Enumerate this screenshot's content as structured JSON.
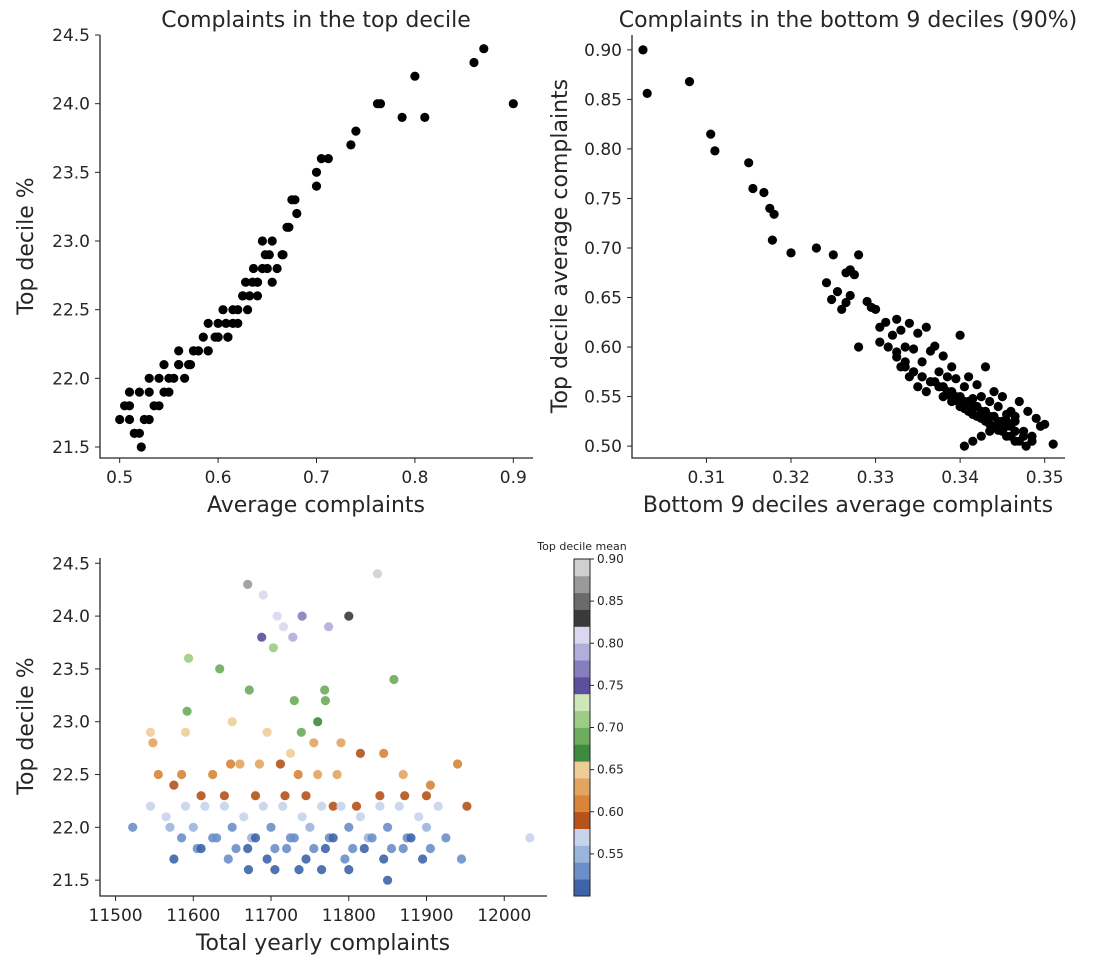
{
  "chart_data": [
    {
      "type": "scatter",
      "title": "Complaints in the top decile",
      "xlabel": "Average complaints",
      "ylabel": "Top decile %",
      "xlim": [
        0.48,
        0.92
      ],
      "ylim": [
        21.42,
        24.5
      ],
      "xticks": [
        "0.5",
        "0.6",
        "0.7",
        "0.8",
        "0.9"
      ],
      "yticks": [
        "21.5",
        "22.0",
        "22.5",
        "23.0",
        "23.5",
        "24.0",
        "24.5"
      ],
      "point_color": "#000000",
      "x": [
        0.9,
        0.87,
        0.86,
        0.81,
        0.8,
        0.787,
        0.765,
        0.762,
        0.74,
        0.735,
        0.712,
        0.705,
        0.7,
        0.7,
        0.68,
        0.678,
        0.675,
        0.672,
        0.67,
        0.666,
        0.655,
        0.652,
        0.648,
        0.645,
        0.645,
        0.64,
        0.636,
        0.632,
        0.628,
        0.625,
        0.62,
        0.615,
        0.61,
        0.608,
        0.605,
        0.6,
        0.597,
        0.59,
        0.585,
        0.58,
        0.575,
        0.572,
        0.566,
        0.56,
        0.555,
        0.55,
        0.545,
        0.54,
        0.535,
        0.53,
        0.525,
        0.52,
        0.515,
        0.51,
        0.505,
        0.5,
        0.51,
        0.52,
        0.53,
        0.54,
        0.55,
        0.56,
        0.57,
        0.58,
        0.59,
        0.6,
        0.61,
        0.62,
        0.63,
        0.64,
        0.65,
        0.66,
        0.53,
        0.545,
        0.56,
        0.575,
        0.59,
        0.6,
        0.615,
        0.625,
        0.635,
        0.64,
        0.655,
        0.665,
        0.522,
        0.515,
        0.51
      ],
      "y": [
        24.0,
        24.4,
        24.3,
        23.9,
        24.2,
        23.9,
        24.0,
        24.0,
        23.8,
        23.7,
        23.6,
        23.6,
        23.4,
        23.5,
        23.2,
        23.3,
        23.3,
        23.1,
        23.1,
        22.9,
        23.0,
        22.9,
        22.9,
        22.8,
        23.0,
        22.7,
        22.8,
        22.6,
        22.7,
        22.6,
        22.5,
        22.4,
        22.3,
        22.4,
        22.5,
        22.3,
        22.3,
        22.2,
        22.3,
        22.2,
        22.2,
        22.1,
        22.0,
        22.1,
        22.0,
        21.9,
        21.9,
        21.8,
        21.8,
        21.7,
        21.7,
        21.6,
        21.6,
        21.7,
        21.8,
        21.7,
        21.9,
        21.9,
        21.9,
        22.0,
        22.0,
        22.1,
        22.1,
        22.2,
        22.2,
        22.3,
        22.3,
        22.4,
        22.5,
        22.6,
        22.8,
        22.8,
        22.0,
        22.1,
        22.2,
        22.2,
        22.4,
        22.4,
        22.5,
        22.6,
        22.7,
        22.7,
        22.7,
        22.9,
        21.5,
        21.6,
        21.8
      ],
      "grid": false
    },
    {
      "type": "scatter",
      "title": "Complaints in the bottom 9 deciles (90%)",
      "xlabel": "Bottom 9 deciles average complaints",
      "ylabel": "Top decile average complaints",
      "xlim": [
        0.3012,
        0.3524
      ],
      "ylim": [
        0.488,
        0.915
      ],
      "xticks": [
        "0.31",
        "0.32",
        "0.33",
        "0.34",
        "0.35"
      ],
      "yticks": [
        "0.50",
        "0.55",
        "0.60",
        "0.65",
        "0.70",
        "0.75",
        "0.80",
        "0.85",
        "0.90"
      ],
      "point_color": "#000000",
      "x": [
        0.3025,
        0.303,
        0.308,
        0.3105,
        0.311,
        0.315,
        0.3155,
        0.3168,
        0.3175,
        0.318,
        0.3178,
        0.32,
        0.323,
        0.325,
        0.3265,
        0.3242,
        0.3248,
        0.327,
        0.3275,
        0.328,
        0.3255,
        0.326,
        0.3265,
        0.327,
        0.328,
        0.329,
        0.3295,
        0.33,
        0.3305,
        0.3312,
        0.332,
        0.3325,
        0.333,
        0.3335,
        0.334,
        0.3345,
        0.335,
        0.3355,
        0.336,
        0.3365,
        0.337,
        0.3375,
        0.338,
        0.3385,
        0.339,
        0.3395,
        0.34,
        0.3405,
        0.341,
        0.3415,
        0.342,
        0.3425,
        0.343,
        0.3435,
        0.344,
        0.3445,
        0.345,
        0.3455,
        0.346,
        0.3465,
        0.347,
        0.348,
        0.349,
        0.35,
        0.3475,
        0.3485,
        0.3495,
        0.351,
        0.333,
        0.334,
        0.335,
        0.336,
        0.337,
        0.338,
        0.339,
        0.34,
        0.341,
        0.342,
        0.343,
        0.344,
        0.345,
        0.346,
        0.347,
        0.338,
        0.339,
        0.34,
        0.341,
        0.342,
        0.343,
        0.344,
        0.345,
        0.346,
        0.3325,
        0.3335,
        0.3345,
        0.3355,
        0.3365,
        0.3375,
        0.3385,
        0.3395,
        0.3405,
        0.3415,
        0.3425,
        0.3435,
        0.3445,
        0.3455,
        0.3465,
        0.3475,
        0.3485,
        0.3305,
        0.3315,
        0.3325,
        0.3335,
        0.3345,
        0.3355,
        0.3365,
        0.3375,
        0.3385,
        0.3395,
        0.3405,
        0.3415,
        0.3425,
        0.3435,
        0.3445,
        0.3455,
        0.3465,
        0.3478,
        0.3405,
        0.3415,
        0.3425,
        0.3435,
        0.3445,
        0.3455,
        0.3465
      ],
      "y": [
        0.9,
        0.856,
        0.868,
        0.815,
        0.798,
        0.786,
        0.76,
        0.756,
        0.74,
        0.734,
        0.708,
        0.695,
        0.7,
        0.693,
        0.675,
        0.665,
        0.648,
        0.678,
        0.673,
        0.693,
        0.656,
        0.638,
        0.645,
        0.652,
        0.6,
        0.646,
        0.64,
        0.638,
        0.62,
        0.625,
        0.612,
        0.628,
        0.617,
        0.6,
        0.624,
        0.598,
        0.614,
        0.585,
        0.62,
        0.596,
        0.601,
        0.575,
        0.591,
        0.57,
        0.58,
        0.568,
        0.612,
        0.56,
        0.57,
        0.548,
        0.562,
        0.55,
        0.58,
        0.545,
        0.555,
        0.54,
        0.55,
        0.532,
        0.535,
        0.525,
        0.545,
        0.535,
        0.528,
        0.522,
        0.515,
        0.51,
        0.52,
        0.502,
        0.58,
        0.57,
        0.56,
        0.555,
        0.565,
        0.55,
        0.545,
        0.54,
        0.535,
        0.53,
        0.525,
        0.52,
        0.515,
        0.51,
        0.505,
        0.56,
        0.555,
        0.55,
        0.545,
        0.54,
        0.535,
        0.53,
        0.525,
        0.52,
        0.59,
        0.585,
        0.575,
        0.57,
        0.565,
        0.56,
        0.555,
        0.55,
        0.545,
        0.54,
        0.535,
        0.53,
        0.525,
        0.52,
        0.515,
        0.51,
        0.505,
        0.605,
        0.6,
        0.595,
        0.58,
        0.575,
        0.57,
        0.565,
        0.56,
        0.552,
        0.546,
        0.538,
        0.532,
        0.528,
        0.522,
        0.516,
        0.51,
        0.505,
        0.5,
        0.5,
        0.505,
        0.51,
        0.515,
        0.52,
        0.525,
        0.53
      ],
      "grid": false
    },
    {
      "type": "scatter",
      "title": "",
      "xlabel": "Total yearly complaints",
      "ylabel": "Top decile %",
      "xlim": [
        11480,
        12055
      ],
      "ylim": [
        21.35,
        24.55
      ],
      "xticks": [
        "11500",
        "11600",
        "11700",
        "11800",
        "11900",
        "12000"
      ],
      "yticks": [
        "21.5",
        "22.0",
        "22.5",
        "23.0",
        "23.5",
        "24.0",
        "24.5"
      ],
      "colorbar": {
        "title": "Top decile mean",
        "ticks": [
          "0.55",
          "0.60",
          "0.65",
          "0.70",
          "0.75",
          "0.80",
          "0.85",
          "0.90"
        ],
        "range": [
          0.5,
          0.9
        ],
        "colors": [
          "#3d64a8",
          "#6b8fc9",
          "#9bb4dc",
          "#c6d4ec",
          "#b5531a",
          "#d8843a",
          "#e3a45f",
          "#efcd98",
          "#3e8a40",
          "#6cac5c",
          "#9ccc85",
          "#cde6bb",
          "#5b4f9e",
          "#8580bd",
          "#b2addb",
          "#d9d8ee",
          "#3a3a3a",
          "#6b6b6b",
          "#9a9a9a",
          "#cfcfcf"
        ]
      },
      "x": [
        11670,
        11837,
        11690,
        11708,
        11740,
        11716,
        11800,
        11688,
        11774,
        11728,
        11594,
        11634,
        11703,
        11592,
        11769,
        11672,
        11770,
        11858,
        11730,
        11760,
        11739,
        11545,
        11590,
        11650,
        11695,
        11725,
        11755,
        11790,
        11548,
        11555,
        11585,
        11625,
        11648,
        11660,
        11685,
        11712,
        11735,
        11760,
        11785,
        11815,
        11845,
        11870,
        11905,
        11940,
        11952,
        11575,
        11610,
        11640,
        11680,
        11718,
        11745,
        11780,
        11810,
        11840,
        11872,
        11900,
        11545,
        11565,
        11590,
        11615,
        11640,
        11665,
        11690,
        11715,
        11740,
        11765,
        11790,
        11815,
        11840,
        11865,
        11890,
        11915,
        12033,
        11522,
        11570,
        11600,
        11625,
        11650,
        11675,
        11700,
        11725,
        11750,
        11775,
        11800,
        11825,
        11850,
        11875,
        11900,
        11925,
        11585,
        11605,
        11630,
        11655,
        11680,
        11705,
        11730,
        11755,
        11780,
        11805,
        11830,
        11855,
        11880,
        11905,
        11945,
        11575,
        11610,
        11645,
        11670,
        11695,
        11720,
        11745,
        11770,
        11795,
        11820,
        11845,
        11870,
        11895,
        11671,
        11705,
        11736,
        11765,
        11800,
        11850
      ],
      "y": [
        24.3,
        24.4,
        24.2,
        24.0,
        24.0,
        23.9,
        24.0,
        23.8,
        23.9,
        23.8,
        23.6,
        23.5,
        23.7,
        23.1,
        23.3,
        23.3,
        23.2,
        23.4,
        23.2,
        23.0,
        22.9,
        22.9,
        22.9,
        23.0,
        22.9,
        22.7,
        22.8,
        22.8,
        22.8,
        22.5,
        22.5,
        22.5,
        22.6,
        22.6,
        22.6,
        22.6,
        22.5,
        22.5,
        22.5,
        22.7,
        22.7,
        22.5,
        22.4,
        22.6,
        22.2,
        22.4,
        22.3,
        22.3,
        22.3,
        22.3,
        22.3,
        22.2,
        22.2,
        22.3,
        22.3,
        22.3,
        22.2,
        22.1,
        22.2,
        22.2,
        22.2,
        22.1,
        22.2,
        22.2,
        22.1,
        22.2,
        22.2,
        22.1,
        22.2,
        22.2,
        22.1,
        22.2,
        21.9,
        22.0,
        22.0,
        22.0,
        21.9,
        22.0,
        21.9,
        22.0,
        21.9,
        22.0,
        21.9,
        22.0,
        21.9,
        22.0,
        21.9,
        22.0,
        21.9,
        21.9,
        21.8,
        21.9,
        21.8,
        21.9,
        21.8,
        21.9,
        21.8,
        21.9,
        21.8,
        21.9,
        21.8,
        21.9,
        21.8,
        21.7,
        21.7,
        21.8,
        21.7,
        21.8,
        21.7,
        21.8,
        21.7,
        21.8,
        21.7,
        21.8,
        21.7,
        21.8,
        21.7,
        21.6,
        21.6,
        21.6,
        21.6,
        21.6,
        21.5
      ],
      "c": [
        0.865,
        0.88,
        0.82,
        0.8,
        0.76,
        0.82,
        0.83,
        0.75,
        0.79,
        0.78,
        0.71,
        0.7,
        0.72,
        0.69,
        0.69,
        0.69,
        0.68,
        0.69,
        0.68,
        0.66,
        0.69,
        0.64,
        0.64,
        0.64,
        0.64,
        0.64,
        0.62,
        0.63,
        0.62,
        0.61,
        0.61,
        0.61,
        0.61,
        0.63,
        0.62,
        0.6,
        0.61,
        0.62,
        0.63,
        0.6,
        0.61,
        0.62,
        0.61,
        0.61,
        0.6,
        0.6,
        0.6,
        0.6,
        0.6,
        0.6,
        0.6,
        0.6,
        0.6,
        0.6,
        0.6,
        0.6,
        0.56,
        0.56,
        0.56,
        0.56,
        0.56,
        0.56,
        0.56,
        0.56,
        0.56,
        0.56,
        0.56,
        0.56,
        0.56,
        0.56,
        0.56,
        0.56,
        0.56,
        0.53,
        0.54,
        0.54,
        0.53,
        0.52,
        0.54,
        0.53,
        0.52,
        0.54,
        0.53,
        0.52,
        0.54,
        0.53,
        0.52,
        0.54,
        0.53,
        0.52,
        0.52,
        0.53,
        0.52,
        0.51,
        0.52,
        0.53,
        0.52,
        0.51,
        0.52,
        0.53,
        0.52,
        0.51,
        0.52,
        0.52,
        0.51,
        0.51,
        0.52,
        0.51,
        0.51,
        0.52,
        0.51,
        0.51,
        0.52,
        0.51,
        0.51,
        0.52,
        0.51,
        0.505,
        0.505,
        0.505,
        0.505,
        0.505,
        0.505
      ],
      "grid": false
    }
  ]
}
